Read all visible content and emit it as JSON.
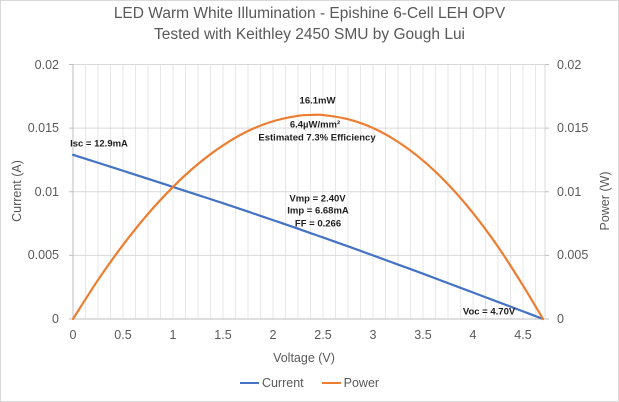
{
  "title": {
    "line1": "LED Warm White Illumination - Epishine 6-Cell LEH OPV",
    "line2": "Tested with Keithley 2450 SMU by Gough Lui"
  },
  "axes": {
    "x": {
      "title": "Voltage (V)",
      "tick_labels": [
        "0",
        "0.5",
        "1",
        "1.5",
        "2",
        "2.5",
        "3",
        "3.5",
        "4",
        "4.5"
      ]
    },
    "left": {
      "title": "Current (A)",
      "tick_labels": [
        "0.02",
        "0.015",
        "0.01",
        "0.005",
        "0"
      ]
    },
    "right": {
      "title": "Power (W)",
      "tick_labels": [
        "0.02",
        "0.015",
        "0.01",
        "0.005",
        "0"
      ]
    }
  },
  "legend": {
    "items": [
      {
        "label": "Current",
        "color": "#4472C4"
      },
      {
        "label": "Power",
        "color": "#ED7D31"
      }
    ],
    "position": "bottom"
  },
  "colors": {
    "current_line": "#4472C4",
    "power_line": "#ED7D31",
    "grid_minor": "#E7E7E7",
    "grid_major": "#D9D9D9",
    "axis": "#BFBFBF",
    "text_gray": "#595959",
    "annotation_text": "#1F1F1F"
  },
  "chart_data": {
    "type": "line",
    "title": "LED Warm White Illumination - Epishine 6-Cell LEH OPV Tested with Keithley 2450 SMU by Gough Lui",
    "xlabel": "Voltage (V)",
    "ylabel_left": "Current (A)",
    "ylabel_right": "Power (W)",
    "xlim": [
      0,
      4.72
    ],
    "ylim": [
      0,
      0.02
    ],
    "x_major_ticks": [
      0,
      0.5,
      1,
      1.5,
      2,
      2.5,
      3,
      3.5,
      4,
      4.5
    ],
    "x_minor_step": 0.125,
    "y_ticks": [
      0,
      0.005,
      0.01,
      0.015,
      0.02
    ],
    "grid": true,
    "legend_position": "bottom",
    "x": [
      0,
      0.25,
      0.5,
      0.75,
      1,
      1.25,
      1.5,
      1.75,
      2,
      2.25,
      2.4,
      2.5,
      2.75,
      3,
      3.25,
      3.5,
      3.75,
      4,
      4.25,
      4.5,
      4.7
    ],
    "series": [
      {
        "name": "Current",
        "axis": "left",
        "unit": "A",
        "color": "#4472C4",
        "values": [
          0.0129,
          0.01228,
          0.01165,
          0.01102,
          0.01038,
          0.00974,
          0.0091,
          0.00844,
          0.00777,
          0.0071,
          0.00668,
          0.00641,
          0.00571,
          0.005,
          0.00428,
          0.00356,
          0.00282,
          0.00208,
          0.00134,
          0.0006,
          0
        ]
      },
      {
        "name": "Power",
        "axis": "right",
        "unit": "W",
        "color": "#ED7D31",
        "values": [
          0,
          0.00307,
          0.00582,
          0.00826,
          0.01038,
          0.01218,
          0.01364,
          0.01477,
          0.01554,
          0.01597,
          0.01604,
          0.01603,
          0.0157,
          0.01501,
          0.01392,
          0.01245,
          0.01059,
          0.00833,
          0.00568,
          0.00263,
          0
        ]
      }
    ],
    "key_points": {
      "isc_mA": 12.9,
      "voc_V": 4.7,
      "vmp_V": 2.4,
      "imp_mA": 6.68,
      "pmax_mW": 16.1,
      "power_density_uW_per_mm2": 6.4,
      "estimated_efficiency_pct": 7.3,
      "fill_factor": 0.266
    },
    "annotations": [
      {
        "text": "Isc = 12.9mA",
        "x": 0.26,
        "y": 0.01375
      },
      {
        "text": "16.1mW",
        "x": 2.445,
        "y": 0.01713
      },
      {
        "text": "6.4µW/mm²",
        "x": 2.42,
        "y": 0.01525
      },
      {
        "text": "Estimated 7.3% Efficiency",
        "x": 2.44,
        "y": 0.01423
      },
      {
        "text": "Vmp = 2.40V",
        "x": 2.445,
        "y": 0.00943
      },
      {
        "text": "Imp = 6.68mA",
        "x": 2.45,
        "y": 0.00845
      },
      {
        "text": "FF = 0.266",
        "x": 2.45,
        "y": 0.0075
      },
      {
        "text": "Voc = 4.70V",
        "x": 4.16,
        "y": 0.00055
      }
    ]
  }
}
